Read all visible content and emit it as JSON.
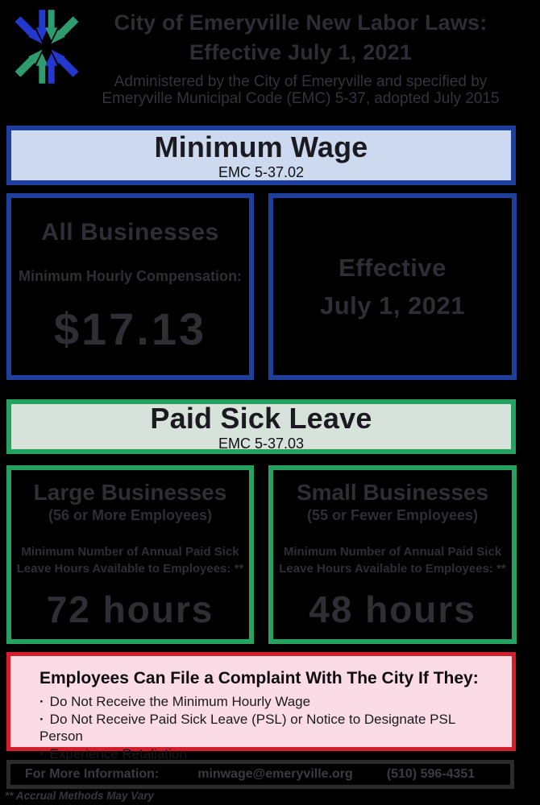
{
  "header": {
    "title_line1": "City of Emeryville New Labor Laws:",
    "title_line2": "Effective July 1, 2021",
    "subtitle_line1": "Administered by the City of Emeryville and specified by",
    "subtitle_line2": "Emeryville Municipal Code (EMC) 5-37, adopted July 2015",
    "logo_icon": "emeryville-arrows-logo"
  },
  "minimum_wage": {
    "title": "Minimum Wage",
    "code": "EMC 5-37.02",
    "all_businesses": {
      "title": "All Businesses",
      "label": "Minimum Hourly Compensation:",
      "value": "$17.13"
    },
    "effective": {
      "line1": "Effective",
      "line2": "July 1, 2021"
    }
  },
  "paid_sick_leave": {
    "title": "Paid Sick Leave",
    "code": "EMC 5-37.03",
    "large_businesses": {
      "title": "Large Businesses",
      "subtitle": "(56 or More Employees)",
      "label_line1": "Minimum Number of Annual Paid Sick",
      "label_line2": "Leave Hours Available to Employees: **",
      "value": "72 hours"
    },
    "small_businesses": {
      "title": "Small Businesses",
      "subtitle": "(55 or Fewer Employees)",
      "label_line1": "Minimum Number of Annual Paid Sick",
      "label_line2": "Leave Hours Available to Employees: **",
      "value": "48 hours"
    }
  },
  "complaint": {
    "title": "Employees Can File a Complaint With The City If They:",
    "bullet_char": "·",
    "bullets": [
      "Do Not Receive the Minimum Hourly Wage",
      "Do Not Receive Paid Sick Leave (PSL) or Notice to Designate PSL Person",
      "Experience Retaliation"
    ]
  },
  "footer": {
    "label": "For More Information:",
    "email": "minwage@emeryville.org",
    "phone": "(510) 596-4351",
    "note": "** Accrual Methods May Vary"
  },
  "colors": {
    "page_background": "#000000",
    "blue_border": "#1e3f9c",
    "blue_header_bg": "#ccd9ee",
    "green_border": "#25a160",
    "green_header_bg": "#d7e3da",
    "red_border": "#d31f2b",
    "pink_bg": "#fbdce6",
    "logo_blue": "#2438cf",
    "logo_green": "#2e9c6e",
    "body_text": "#2f2e34"
  }
}
